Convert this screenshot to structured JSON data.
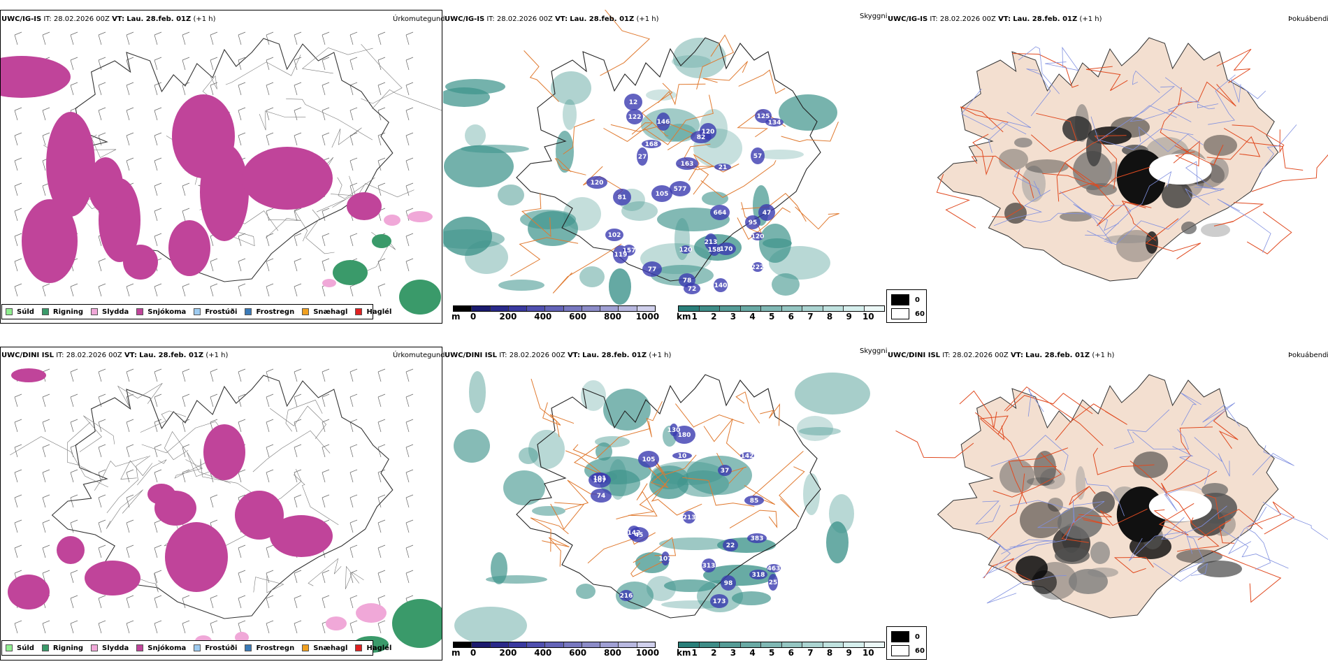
{
  "rows": [
    {
      "id": "top",
      "precip": {
        "model": "UWC/IG-IS",
        "it_label": "IT:",
        "it_value": "28.02.2026 00Z",
        "vt_label": "VT:",
        "vt_value": "Lau. 28.feb. 01Z",
        "lead": "(+1 h)",
        "name": "Úrkomutegund"
      },
      "cloud": {
        "model": "UWC/IG-IS",
        "it_label": "IT:",
        "it_value": "28.02.2026 00Z",
        "vt_label": "VT:",
        "vt_value": "Lau. 28.feb. 01Z",
        "lead": "(+1 h)",
        "name": "Skyggni",
        "cloud_base_labels": [
          "158",
          "57",
          "222",
          "168",
          "72",
          "27",
          "21",
          "577",
          "81",
          "120",
          "105",
          "122",
          "146",
          "120",
          "119",
          "134",
          "170",
          "82",
          "120",
          "163",
          "12",
          "102",
          "125",
          "140",
          "47",
          "213",
          "664",
          "157",
          "77",
          "95",
          "78",
          "120"
        ]
      },
      "fog": {
        "model": "UWC/IG-IS",
        "it_label": "IT:",
        "it_value": "28.02.2026 00Z",
        "vt_label": "VT:",
        "vt_value": "Lau. 28.feb. 01Z",
        "lead": "(+1 h)",
        "name": "Þokuábendi"
      }
    },
    {
      "id": "bottom",
      "precip": {
        "model": "UWC/DINI ISL",
        "it_label": "IT:",
        "it_value": "28.02.2026 00Z",
        "vt_label": "VT:",
        "vt_value": "Lau. 28.feb. 01Z",
        "lead": "(+1 h)",
        "name": "Úrkomutegund"
      },
      "cloud": {
        "model": "UWC/DINI ISL",
        "it_label": "IT:",
        "it_value": "28.02.2026 00Z",
        "vt_label": "VT:",
        "vt_value": "Lau. 28.feb. 01Z",
        "lead": "(+1 h)",
        "name": "Skyggni",
        "cloud_base_labels": [
          "105",
          "74",
          "22",
          "180",
          "313",
          "101",
          "25",
          "98",
          "37",
          "130",
          "107",
          "10",
          "213",
          "216",
          "463",
          "318",
          "142",
          "383",
          "45",
          "173",
          "85",
          "142",
          "107"
        ]
      },
      "fog": {
        "model": "UWC/DINI ISL",
        "it_label": "IT:",
        "it_value": "28.02.2026 00Z",
        "vt_label": "VT:",
        "vt_value": "Lau. 28.feb. 01Z",
        "lead": "(+1 h)",
        "name": "Þokuábendi"
      }
    }
  ],
  "precip_legend": [
    {
      "label": "Súld",
      "color": "#90ee90"
    },
    {
      "label": "Rigning",
      "color": "#3a9a6a"
    },
    {
      "label": "Slydda",
      "color": "#f0a8d8"
    },
    {
      "label": "Snjókoma",
      "color": "#c0449a"
    },
    {
      "label": "Frostúði",
      "color": "#9ecbf0"
    },
    {
      "label": "Frostregn",
      "color": "#3a7ab8"
    },
    {
      "label": "Snæhagl",
      "color": "#f0a020"
    },
    {
      "label": "Haglél",
      "color": "#e02020"
    }
  ],
  "cloud_base_scale": {
    "unit": "m",
    "ticks": [
      "0",
      "200",
      "400",
      "600",
      "800",
      "1000"
    ],
    "colors": [
      "#000000",
      "#1a1a6e",
      "#2a2a8a",
      "#3a3aa0",
      "#5050b0",
      "#6464b8",
      "#7878c0",
      "#8c8cc8",
      "#a0a0d4",
      "#b8b8e0",
      "#d0d0ec"
    ]
  },
  "visibility_scale": {
    "unit": "km",
    "ticks": [
      "1",
      "2",
      "3",
      "4",
      "5",
      "6",
      "7",
      "8",
      "9",
      "10"
    ],
    "colors": [
      "#2a7f7a",
      "#3f8d88",
      "#559c97",
      "#6aaaa5",
      "#80b8b4",
      "#95c6c2",
      "#abd4d1",
      "#c0e2df",
      "#d6efed",
      "#ecf8f7"
    ]
  },
  "fog_scale": {
    "items": [
      {
        "label": "0",
        "color": "#000000"
      },
      {
        "label": "60",
        "color": "#ffffff"
      }
    ]
  },
  "colors": {
    "land_fog": "#f3dfd0",
    "roads": "#e07a30",
    "roads_fog": "#e04a20",
    "coast": "#333333",
    "snow": "#c0449a",
    "rain": "#3a9a6a",
    "teal": "#3f948c",
    "blue_cells": "#3b3bb0"
  }
}
